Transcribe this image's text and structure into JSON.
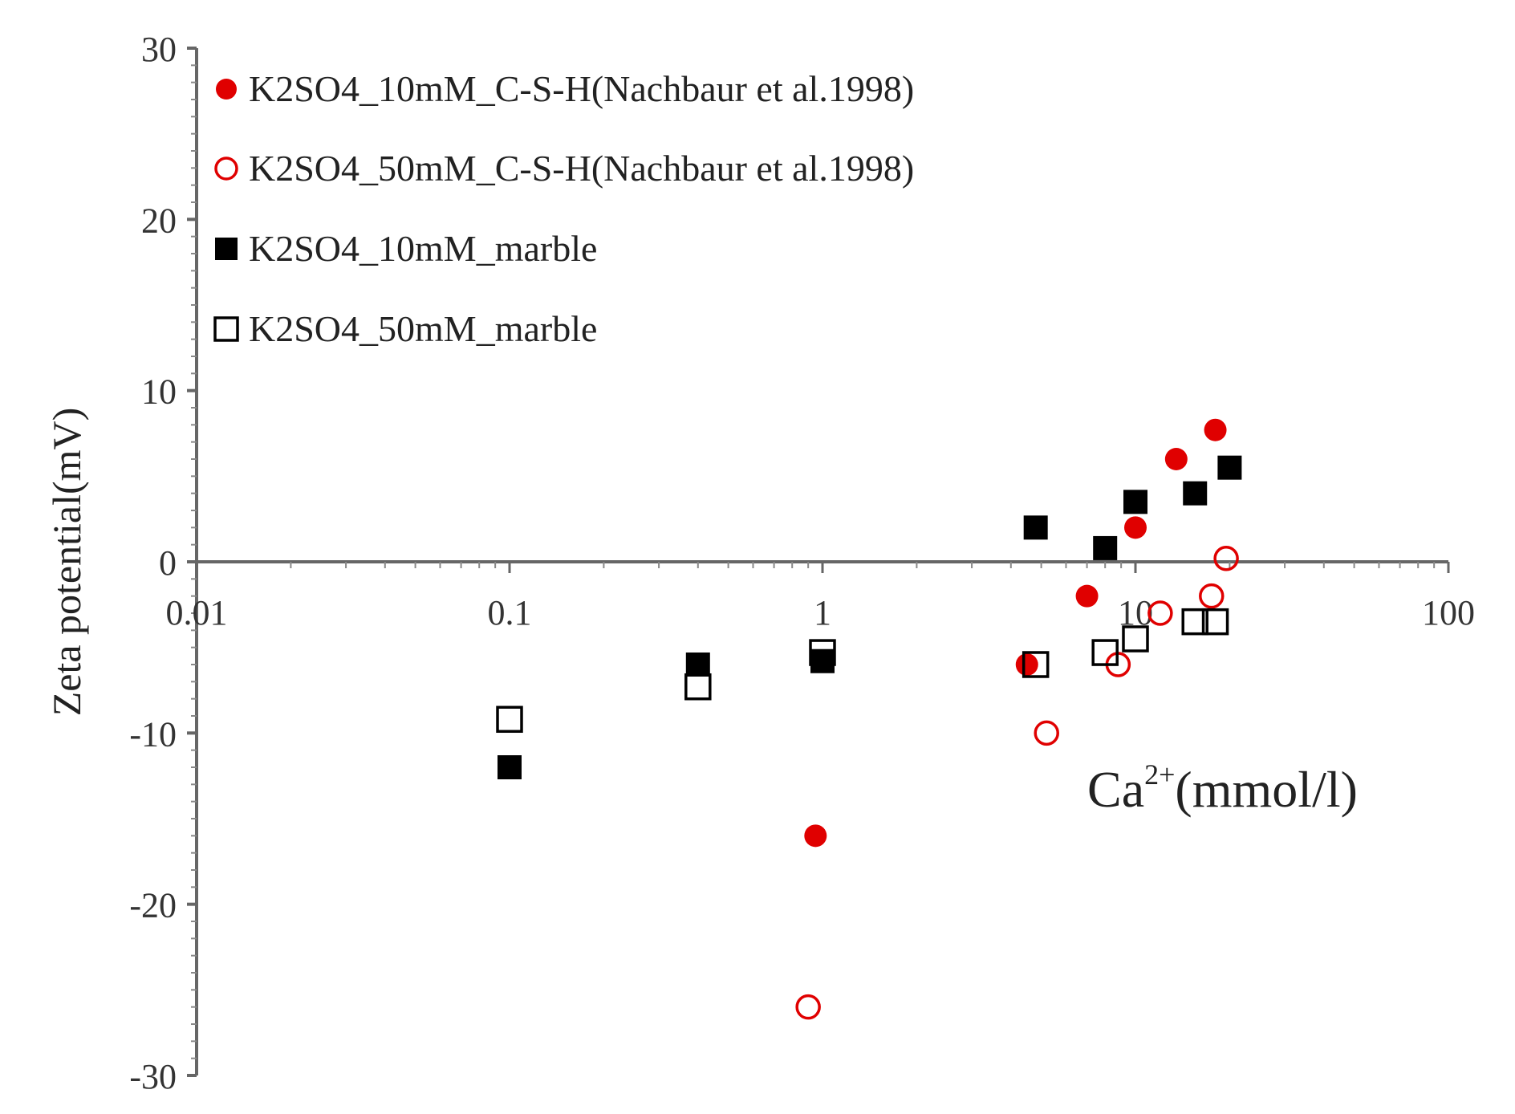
{
  "chart_data": {
    "type": "scatter",
    "title": "",
    "xlabel": {
      "base": "Ca",
      "sup": "2+",
      "rest": "(mmol/l)"
    },
    "ylabel": "Zeta potential(mV)",
    "x_scale": "log",
    "xlim": [
      0.01,
      100
    ],
    "ylim": [
      -30,
      30
    ],
    "x_tick_labels": [
      "0.01",
      "0.1",
      "1",
      "10",
      "100"
    ],
    "y_tick_labels": [
      "30",
      "20",
      "10",
      "0",
      "-10",
      "-20",
      "-30"
    ],
    "grid": false,
    "legend_position": "top-left",
    "series": [
      {
        "name": "K2SO4_10mM_C-S-H(Nachbaur et al.1998)",
        "marker": "filled-circle",
        "color": "#e00000",
        "points": [
          [
            0.95,
            -16
          ],
          [
            4.5,
            -6
          ],
          [
            7.0,
            -2
          ],
          [
            10.0,
            2
          ],
          [
            13.5,
            6
          ],
          [
            18.0,
            7.7
          ]
        ]
      },
      {
        "name": "K2SO4_50mM_C-S-H(Nachbaur et al.1998)",
        "marker": "open-circle",
        "color": "#e00000",
        "points": [
          [
            0.9,
            -26
          ],
          [
            5.2,
            -10
          ],
          [
            8.8,
            -6
          ],
          [
            12.0,
            -3
          ],
          [
            17.5,
            -2
          ],
          [
            19.5,
            0.2
          ]
        ]
      },
      {
        "name": "K2SO4_10mM_marble",
        "marker": "filled-square",
        "color": "#000000",
        "points": [
          [
            0.1,
            -12
          ],
          [
            0.4,
            -6
          ],
          [
            1.0,
            -5.8
          ],
          [
            4.8,
            2
          ],
          [
            8.0,
            0.8
          ],
          [
            10.0,
            3.5
          ],
          [
            15.5,
            4
          ],
          [
            20.0,
            5.5
          ]
        ]
      },
      {
        "name": "K2SO4_50mM_marble",
        "marker": "open-square",
        "color": "#000000",
        "points": [
          [
            0.1,
            -9.2
          ],
          [
            0.4,
            -7.3
          ],
          [
            1.0,
            -5.3
          ],
          [
            4.8,
            -6
          ],
          [
            8.0,
            -5.3
          ],
          [
            10.0,
            -4.5
          ],
          [
            15.5,
            -3.5
          ],
          [
            18.0,
            -3.5
          ]
        ]
      }
    ]
  }
}
